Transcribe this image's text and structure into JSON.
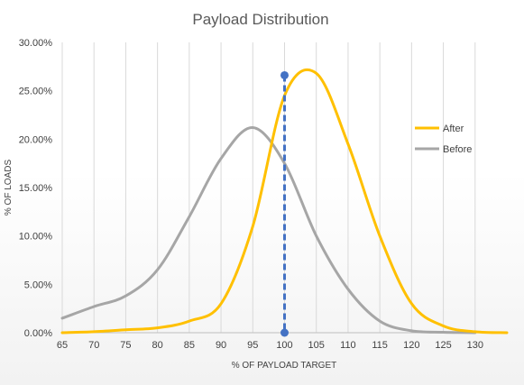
{
  "chart_data": {
    "type": "line",
    "title": "Payload Distribution",
    "xlabel": "% OF PAYLOAD TARGET",
    "ylabel": "% OF LOADS",
    "xlim": [
      65,
      135
    ],
    "ylim": [
      0,
      30
    ],
    "x_ticks": [
      "65",
      "70",
      "75",
      "80",
      "85",
      "90",
      "95",
      "100",
      "105",
      "110",
      "115",
      "120",
      "125",
      "130"
    ],
    "y_ticks": [
      "0.00%",
      "5.00%",
      "10.00%",
      "15.00%",
      "20.00%",
      "25.00%",
      "30.00%"
    ],
    "grid": "vertical",
    "legend_position": "right",
    "series": [
      {
        "name": "After",
        "color": "#FFC000",
        "x": [
          65,
          70,
          75,
          80,
          85,
          90,
          95,
          100,
          105,
          110,
          115,
          120,
          125,
          130,
          135
        ],
        "y": [
          0.0,
          0.1,
          0.3,
          0.5,
          1.2,
          3.0,
          11.0,
          24.5,
          26.8,
          19.5,
          10.0,
          3.0,
          0.7,
          0.1,
          0.0
        ]
      },
      {
        "name": "Before",
        "color": "#A6A6A6",
        "x": [
          65,
          70,
          75,
          80,
          85,
          90,
          95,
          100,
          105,
          110,
          115,
          120,
          125,
          130
        ],
        "y": [
          1.5,
          2.7,
          3.8,
          6.5,
          12.0,
          18.0,
          21.2,
          17.5,
          10.0,
          4.5,
          1.2,
          0.2,
          0.05,
          0.0
        ]
      }
    ],
    "marker_line": {
      "color": "#4472C4",
      "x": 100,
      "y_top": 26.6,
      "y_bottom": 0
    }
  }
}
